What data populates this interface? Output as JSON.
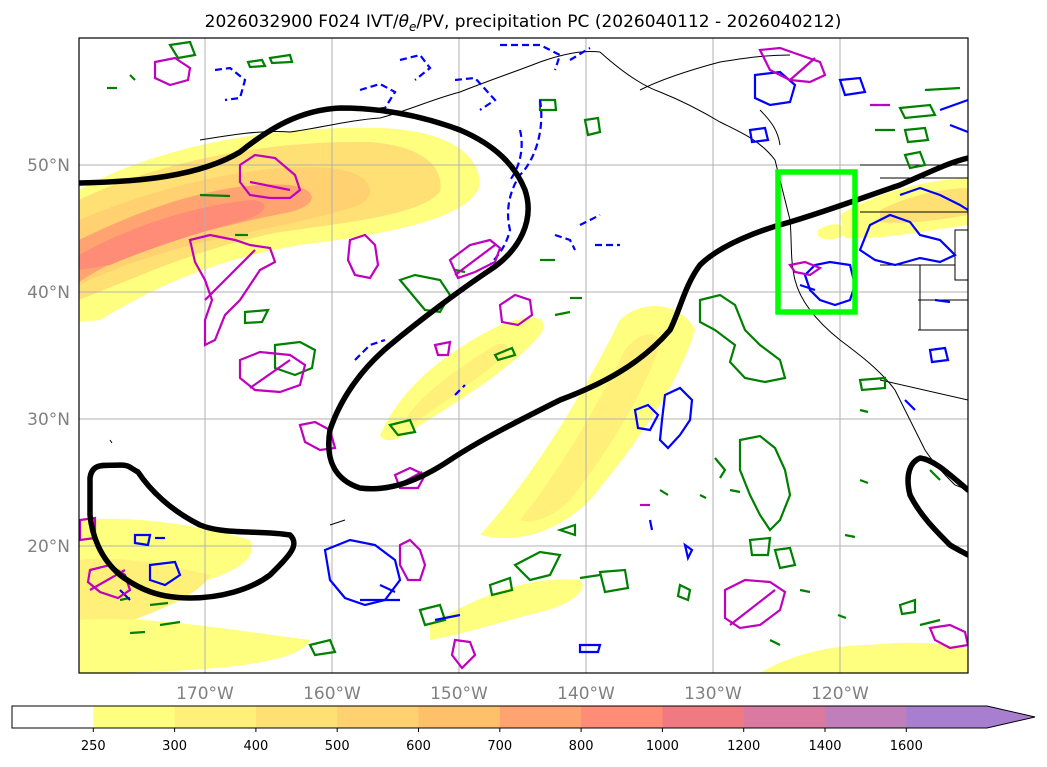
{
  "title": {
    "part1": "2026032900 F024 IVT/",
    "theta": "θ",
    "theta_sub": "e",
    "part2": "/PV, precipitation PC (2026040112 - 2026040212)"
  },
  "map": {
    "lat_labels": [
      "50°N",
      "40°N",
      "30°N",
      "20°N"
    ],
    "lon_labels": [
      "170°W",
      "160°W",
      "150°W",
      "140°W",
      "130°W",
      "120°W"
    ],
    "colors": {
      "ivt_jet_contour": "#000000",
      "pv_positive": "#bf00bf",
      "pv_negative": "#0000ff",
      "theta_e": "#008000",
      "target_box": "#00ff00",
      "coastline": "#000000",
      "grid": "#b0b0b0"
    }
  },
  "colorbar": {
    "ticks": [
      "250",
      "300",
      "400",
      "500",
      "600",
      "700",
      "800",
      "1000",
      "1200",
      "1400",
      "1600"
    ],
    "colors": [
      "#ffffff",
      "#ffff7f",
      "#fff079",
      "#ffe075",
      "#ffd170",
      "#ffc06a",
      "#ffa470",
      "#ff8c76",
      "#f07a82",
      "#da7aa0",
      "#c07fbb",
      "#a87fd0"
    ]
  }
}
